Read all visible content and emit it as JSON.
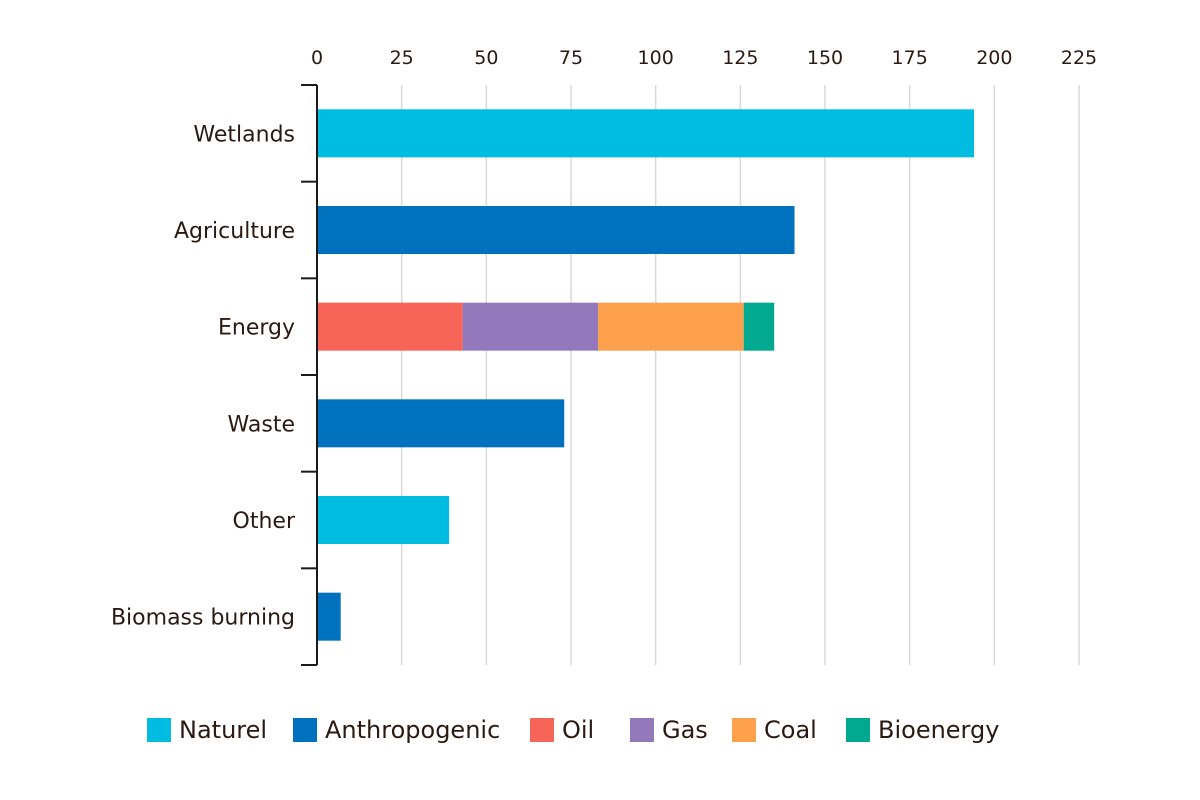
{
  "chart_data": {
    "type": "bar",
    "orientation": "horizontal",
    "stacked": true,
    "title": "",
    "xlabel": "",
    "ylabel": "",
    "xlim": [
      0,
      225
    ],
    "x_ticks": [
      "0",
      "25",
      "50",
      "75",
      "100",
      "125",
      "150",
      "175",
      "200",
      "225"
    ],
    "x_tick_values": [
      0,
      25,
      50,
      75,
      100,
      125,
      150,
      175,
      200,
      225
    ],
    "x_axis_position": "top",
    "grid": true,
    "legend_position": "bottom",
    "categories": [
      "Wetlands",
      "Agriculture",
      "Energy",
      "Waste",
      "Other",
      "Biomass burning"
    ],
    "series": [
      {
        "name": "Naturel",
        "color": "#00bce0",
        "values": [
          194,
          0,
          0,
          0,
          39,
          0
        ]
      },
      {
        "name": "Anthropogenic",
        "color": "#0071bc",
        "values": [
          0,
          141,
          0,
          73,
          0,
          7
        ]
      },
      {
        "name": "Oil",
        "color": "#f76558",
        "values": [
          0,
          0,
          43,
          0,
          0,
          0
        ]
      },
      {
        "name": "Gas",
        "color": "#9379bc",
        "values": [
          0,
          0,
          40,
          0,
          0,
          0
        ]
      },
      {
        "name": "Coal",
        "color": "#fca04b",
        "values": [
          0,
          0,
          43,
          0,
          0,
          0
        ]
      },
      {
        "name": "Bioenergy",
        "color": "#00a98f",
        "values": [
          0,
          0,
          9,
          0,
          0,
          0
        ]
      }
    ]
  }
}
